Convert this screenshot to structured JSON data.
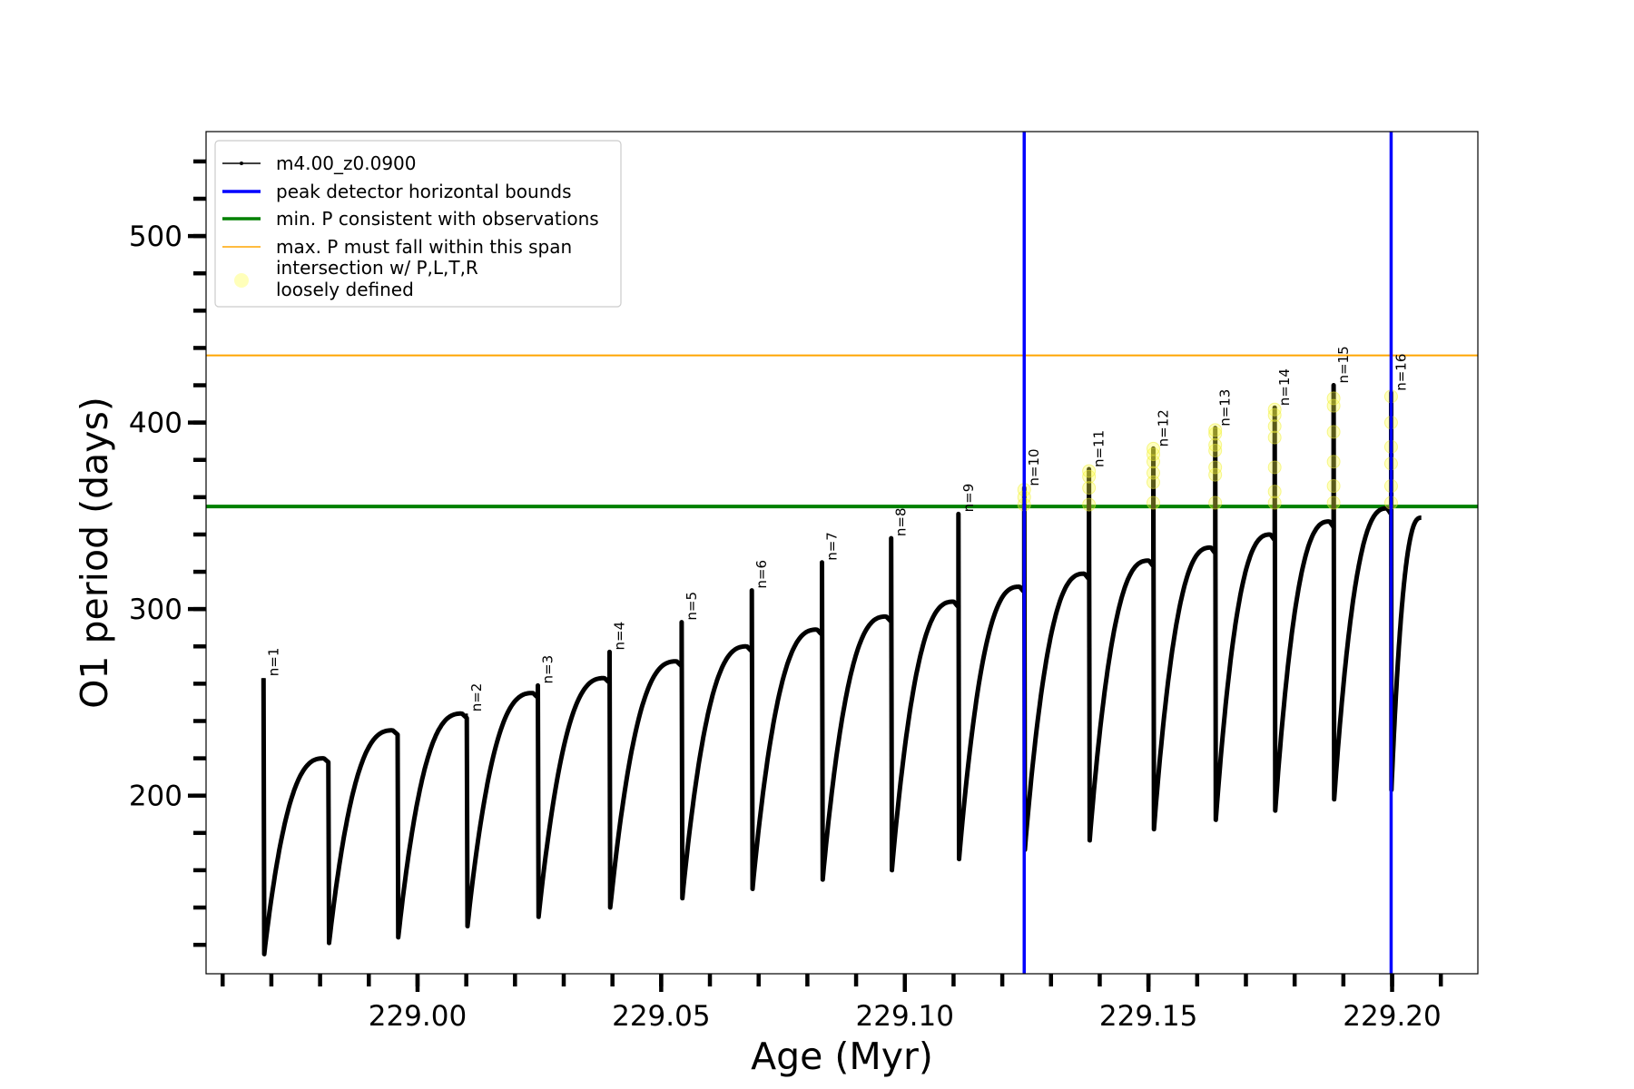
{
  "chart_data": {
    "type": "line",
    "title": "",
    "xlabel": "Age (Myr)",
    "ylabel": "O1 period (days)",
    "xlim": [
      228.9566,
      229.2176
    ],
    "ylim": [
      104.5,
      556
    ],
    "xticks": [
      229.0,
      229.05,
      229.1,
      229.15,
      229.2
    ],
    "xtick_labels": [
      "229.00",
      "229.05",
      "229.10",
      "229.15",
      "229.20"
    ],
    "x_minor_step": 0.01,
    "yticks": [
      200,
      300,
      400,
      500
    ],
    "ytick_labels": [
      "200",
      "300",
      "400",
      "500"
    ],
    "y_minor_step": 20,
    "grid": false,
    "legend_position": "upper-left",
    "legend": [
      {
        "label": "m4.00_z0.0900",
        "kind": "line-marker",
        "color": "#000000"
      },
      {
        "label": "peak detector horizontal bounds",
        "kind": "line",
        "color": "#0000ff"
      },
      {
        "label": "min. P consistent with observations",
        "kind": "line",
        "color": "#008000"
      },
      {
        "label": "max. P must fall within this span",
        "kind": "line",
        "color": "#ffa500"
      },
      {
        "label": "intersection w/ P,L,T,R\nloosely defined",
        "kind": "circle",
        "color": "#ffff66"
      }
    ],
    "series": [
      {
        "name": "m4.00_z0.0900",
        "color": "#000000",
        "segments": [
          {
            "start": 228.9684,
            "end": 228.9817,
            "min": 115,
            "max": 220
          },
          {
            "start": 228.9817,
            "end": 228.9959,
            "min": 121,
            "max": 235
          },
          {
            "start": 228.9959,
            "end": 229.0101,
            "min": 124,
            "max": 244
          },
          {
            "start": 229.0101,
            "end": 229.0247,
            "min": 130,
            "max": 255
          },
          {
            "start": 229.0247,
            "end": 229.0394,
            "min": 135,
            "max": 263
          },
          {
            "start": 229.0394,
            "end": 229.0542,
            "min": 140,
            "max": 272
          },
          {
            "start": 229.0542,
            "end": 229.0686,
            "min": 145,
            "max": 280
          },
          {
            "start": 229.0686,
            "end": 229.083,
            "min": 150,
            "max": 289
          },
          {
            "start": 229.083,
            "end": 229.0972,
            "min": 155,
            "max": 296
          },
          {
            "start": 229.0972,
            "end": 229.111,
            "min": 160,
            "max": 304
          },
          {
            "start": 229.111,
            "end": 229.1245,
            "min": 166,
            "max": 312
          },
          {
            "start": 229.1245,
            "end": 229.1378,
            "min": 171,
            "max": 319
          },
          {
            "start": 229.1378,
            "end": 229.151,
            "min": 176,
            "max": 326
          },
          {
            "start": 229.151,
            "end": 229.1637,
            "min": 182,
            "max": 333
          },
          {
            "start": 229.1637,
            "end": 229.1759,
            "min": 187,
            "max": 340
          },
          {
            "start": 229.1759,
            "end": 229.188,
            "min": 192,
            "max": 347
          },
          {
            "start": 229.188,
            "end": 229.1998,
            "min": 198,
            "max": 354
          },
          {
            "start": 229.1998,
            "end": 229.206,
            "min": 203,
            "max": 349,
            "open": true
          }
        ]
      }
    ],
    "peaks": [
      {
        "label": "n=1",
        "age": 228.9684,
        "period": 263
      },
      {
        "label": "n=2",
        "age": 229.0101,
        "period": 244
      },
      {
        "label": "n=3",
        "age": 229.0247,
        "period": 259
      },
      {
        "label": "n=4",
        "age": 229.0394,
        "period": 277
      },
      {
        "label": "n=5",
        "age": 229.0542,
        "period": 293
      },
      {
        "label": "n=6",
        "age": 229.0686,
        "period": 310
      },
      {
        "label": "n=7",
        "age": 229.083,
        "period": 325
      },
      {
        "label": "n=8",
        "age": 229.0972,
        "period": 338
      },
      {
        "label": "n=9",
        "age": 229.111,
        "period": 351
      },
      {
        "label": "n=10",
        "age": 229.1245,
        "period": 365
      },
      {
        "label": "n=11",
        "age": 229.1378,
        "period": 375
      },
      {
        "label": "n=12",
        "age": 229.151,
        "period": 386
      },
      {
        "label": "n=13",
        "age": 229.1637,
        "period": 397
      },
      {
        "label": "n=14",
        "age": 229.1759,
        "period": 408
      },
      {
        "label": "n=15",
        "age": 229.188,
        "period": 420
      },
      {
        "label": "n=16",
        "age": 229.1998,
        "period": 416
      }
    ],
    "vlines": [
      {
        "name": "peak detector horizontal bounds",
        "x": 229.1245,
        "color": "#0000ff"
      },
      {
        "name": "peak detector horizontal bounds",
        "x": 229.1998,
        "color": "#0000ff"
      }
    ],
    "hlines": [
      {
        "name": "min. P consistent with observations",
        "y": 355,
        "color": "#008000"
      },
      {
        "name": "max. P must fall within this span",
        "y": 436,
        "color": "#ffa500"
      }
    ],
    "intersections": [
      {
        "age": 229.1245,
        "periods": [
          356,
          360,
          364
        ]
      },
      {
        "age": 229.1378,
        "periods": [
          356,
          365,
          371,
          374
        ]
      },
      {
        "age": 229.151,
        "periods": [
          357,
          368,
          373,
          379,
          383,
          386
        ]
      },
      {
        "age": 229.1637,
        "periods": [
          357,
          372,
          376,
          385,
          388,
          394,
          396
        ]
      },
      {
        "age": 229.1759,
        "periods": [
          357,
          363,
          376,
          392,
          398,
          404,
          407
        ]
      },
      {
        "age": 229.188,
        "periods": [
          357,
          366,
          379,
          395,
          409,
          413
        ]
      },
      {
        "age": 229.1998,
        "periods": [
          357,
          366,
          378,
          387,
          400,
          414
        ]
      }
    ]
  }
}
